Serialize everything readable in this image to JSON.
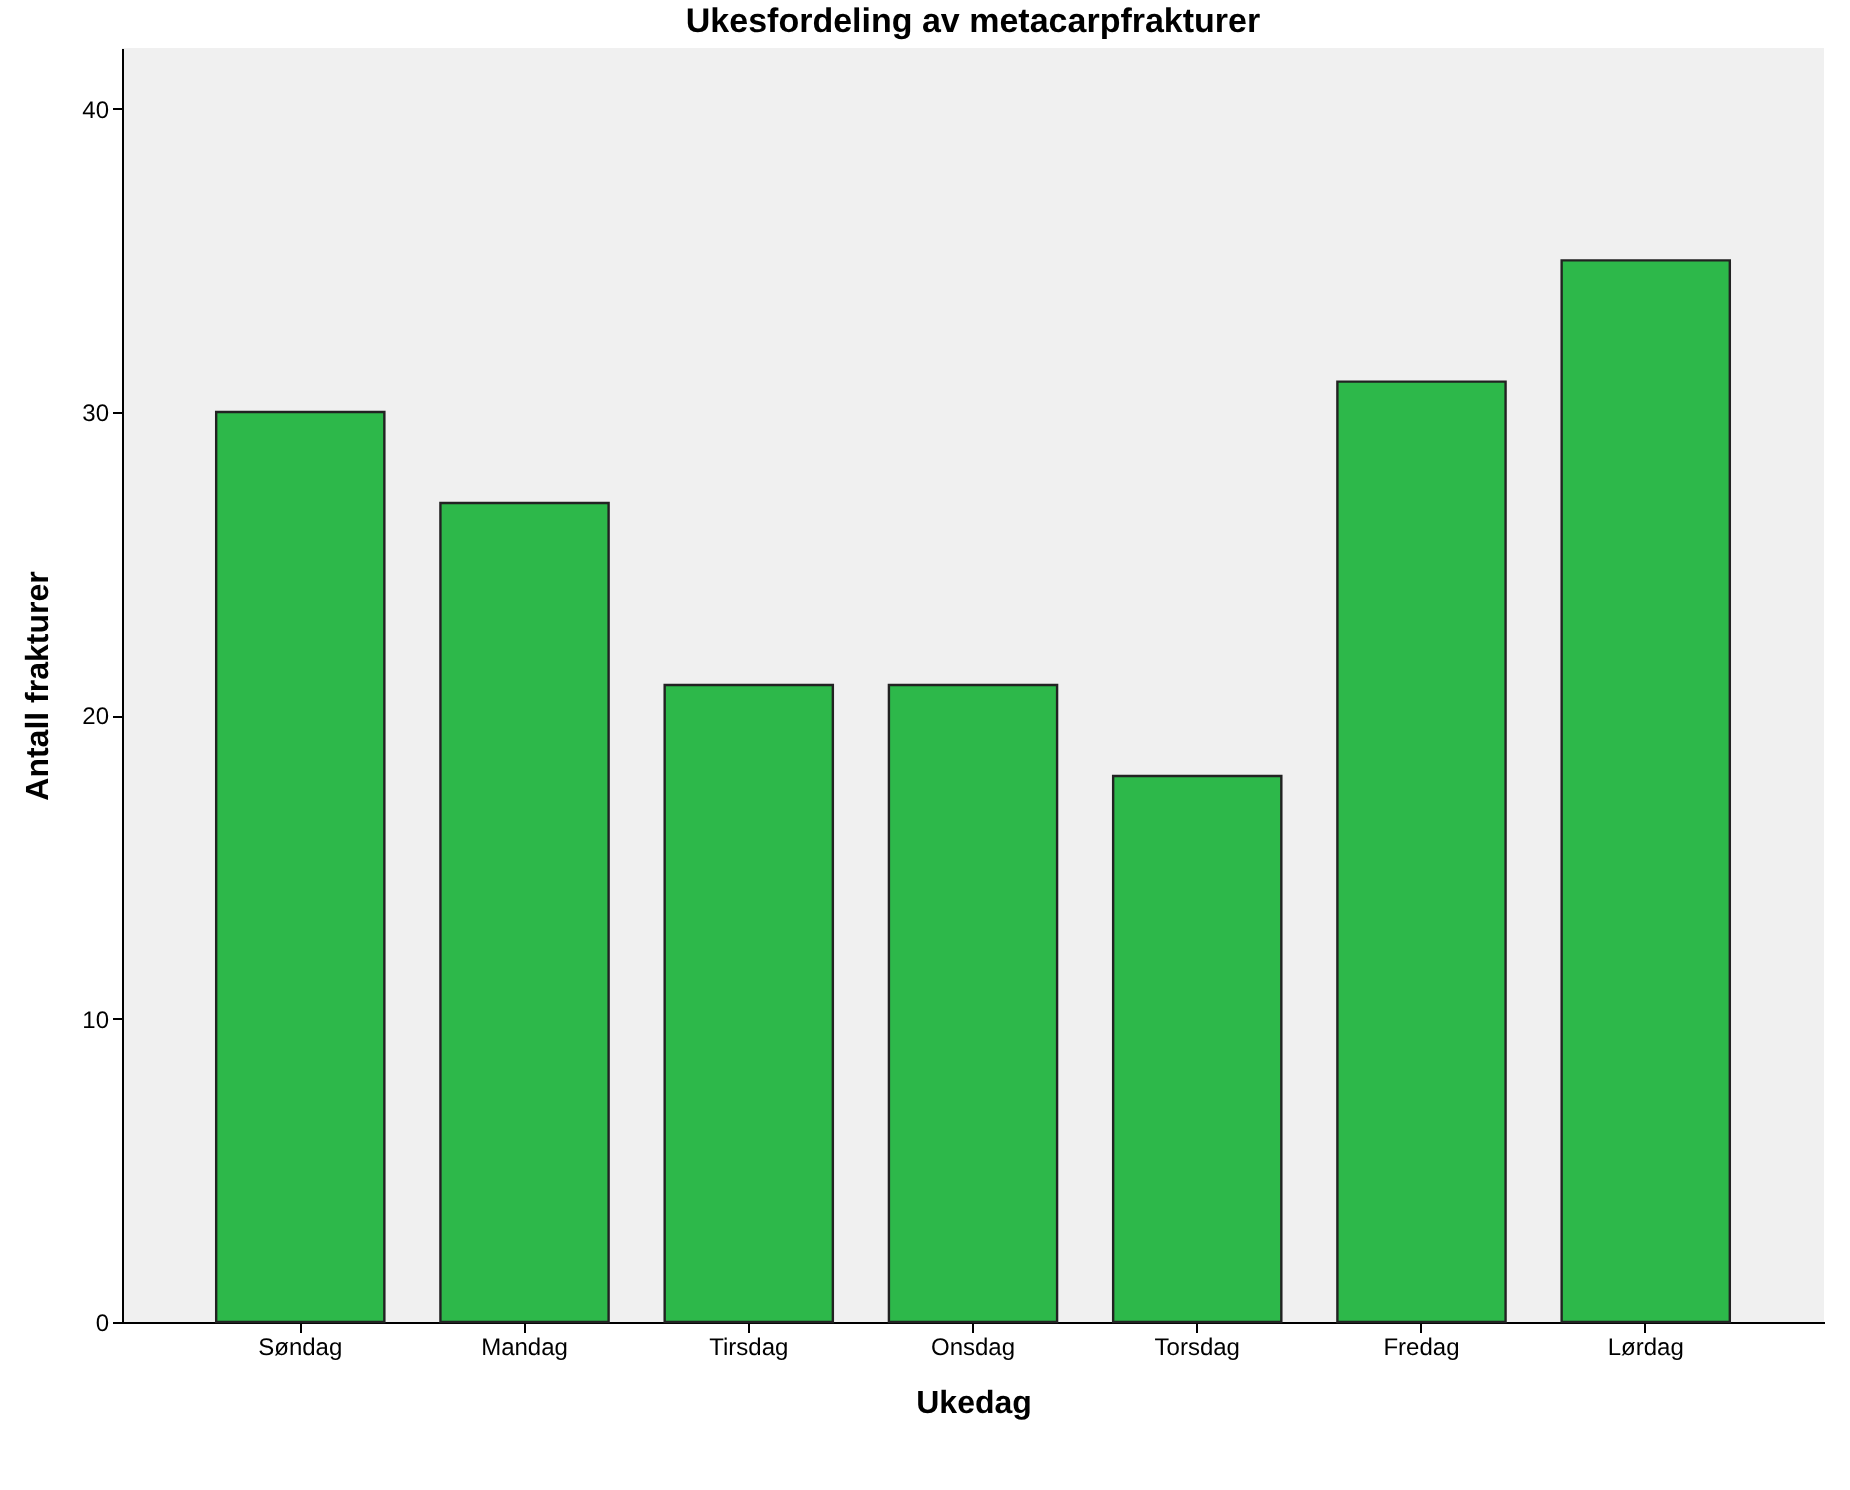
{
  "chart_data": {
    "type": "bar",
    "title": "Ukesfordeling av metacarpfrakturer",
    "xlabel": "Ukedag",
    "ylabel": "Antall frakturer",
    "categories": [
      "Søndag",
      "Mandag",
      "Tirsdag",
      "Onsdag",
      "Torsdag",
      "Fredag",
      "Lørdag"
    ],
    "values": [
      30,
      27,
      21,
      21,
      18,
      31,
      35
    ],
    "color": "#2db84a",
    "ylim": [
      0,
      42
    ],
    "yticks": [
      0,
      10,
      20,
      30,
      40
    ],
    "grid": false
  }
}
